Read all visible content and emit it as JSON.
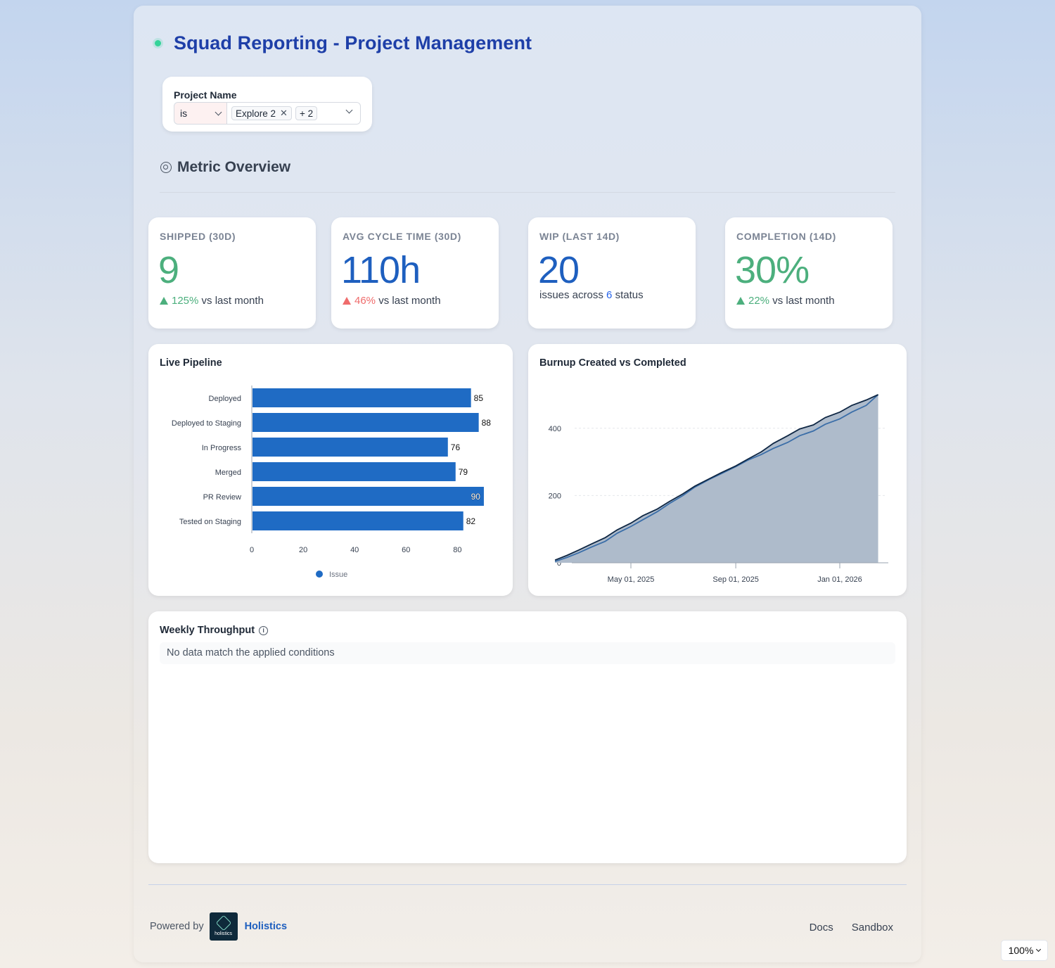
{
  "header": {
    "title": "Squad Reporting - Project Management"
  },
  "filter": {
    "label": "Project Name",
    "operator": "is",
    "selected_tag": "Explore 2",
    "more_count": "+ 2"
  },
  "section": {
    "title": "Metric Overview"
  },
  "kpis": [
    {
      "label": "SHIPPED (30D)",
      "value": "9",
      "value_color": "#4caf7d",
      "change": "125%",
      "direction": "up",
      "change_color": "#4caf7d",
      "suffix": "vs last month"
    },
    {
      "label": "AVG CYCLE TIME (30D)",
      "value": "110h",
      "value_color": "#1e5fbf",
      "change": "46%",
      "direction": "up",
      "change_color": "#ef6c6c",
      "suffix": "vs last month"
    },
    {
      "label": "WIP (LAST 14D)",
      "value": "20",
      "value_color": "#1e5fbf",
      "sub_prefix": "issues across",
      "sub_count": "6",
      "sub_suffix": "status"
    },
    {
      "label": "COMPLETION (14D)",
      "value": "30%",
      "value_color": "#4caf7d",
      "change": "22%",
      "direction": "up",
      "change_color": "#4caf7d",
      "suffix": "vs last month"
    }
  ],
  "pipeline": {
    "title": "Live Pipeline",
    "chart_data": {
      "type": "bar",
      "orientation": "horizontal",
      "categories": [
        "Deployed",
        "Deployed to Staging",
        "In Progress",
        "Merged",
        "PR Review",
        "Tested on Staging"
      ],
      "series": [
        {
          "name": "Issue",
          "values": [
            85,
            88,
            76,
            79,
            90,
            82
          ]
        }
      ],
      "xlim": [
        0,
        90
      ],
      "xticks": [
        0,
        20,
        40,
        60,
        80
      ],
      "bar_color": "#1f6bc4",
      "legend": "bottom-center"
    }
  },
  "burnup": {
    "title": "Burnup Created vs Completed",
    "chart_data": {
      "type": "area",
      "x_ticks": [
        "May 01, 2025",
        "Sep 01, 2025",
        "Jan 01, 2026"
      ],
      "yticks": [
        0,
        200,
        400
      ],
      "ylim": [
        0,
        500
      ],
      "x": [
        "2025-02-01",
        "2025-02-15",
        "2025-03-01",
        "2025-03-15",
        "2025-04-01",
        "2025-04-15",
        "2025-05-01",
        "2025-05-15",
        "2025-06-01",
        "2025-06-15",
        "2025-07-01",
        "2025-07-15",
        "2025-08-01",
        "2025-08-15",
        "2025-09-01",
        "2025-09-15",
        "2025-10-01",
        "2025-10-15",
        "2025-11-01",
        "2025-11-15",
        "2025-12-01",
        "2025-12-15",
        "2026-01-01",
        "2026-01-15",
        "2026-02-01",
        "2026-02-15"
      ],
      "series": [
        {
          "values": [
            8,
            22,
            38,
            55,
            75,
            98,
            118,
            140,
            160,
            182,
            205,
            228,
            250,
            268,
            288,
            308,
            330,
            355,
            378,
            398,
            410,
            432,
            448,
            468,
            484,
            500
          ]
        },
        {
          "values": [
            4,
            16,
            30,
            46,
            64,
            88,
            108,
            128,
            152,
            176,
            200,
            225,
            248,
            265,
            286,
            305,
            322,
            340,
            358,
            378,
            392,
            412,
            428,
            448,
            468,
            500
          ]
        }
      ],
      "grid": true,
      "fill_color": "#aebbcb",
      "line_colors": [
        "#0f2744",
        "#3b6ea8"
      ]
    }
  },
  "throughput": {
    "title": "Weekly Throughput",
    "empty_message": "No data match the applied conditions"
  },
  "footer": {
    "powered_by": "Powered by",
    "logo_text": "holistics",
    "brand": "Holistics",
    "links": [
      "Docs",
      "Sandbox"
    ]
  },
  "zoom": {
    "level": "100%"
  }
}
